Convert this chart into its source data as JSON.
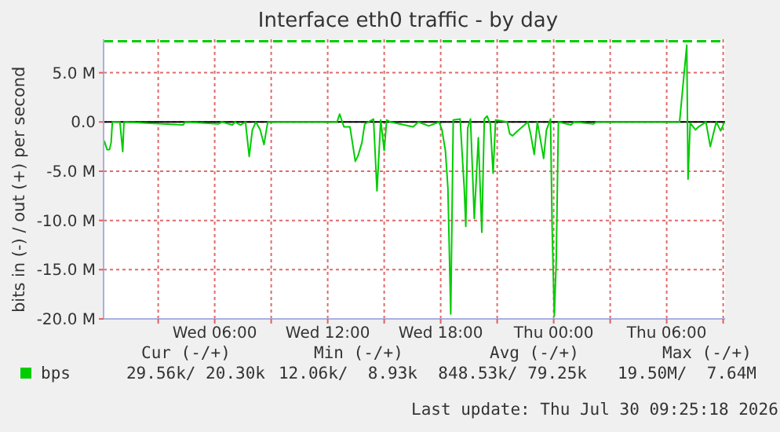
{
  "chart_data": {
    "type": "line",
    "title": "Interface eth0 traffic - by day",
    "ylabel": "bits in (-) / out (+) per second",
    "x": [
      "2026-07-29T00:08",
      "2026-07-29T00:17",
      "2026-07-29T00:25",
      "2026-07-29T00:30",
      "2026-07-29T00:34",
      "2026-07-29T00:58",
      "2026-07-29T01:07",
      "2026-07-29T01:11",
      "2026-07-29T04:19",
      "2026-07-29T04:26",
      "2026-07-29T06:11",
      "2026-07-29T06:23",
      "2026-07-29T06:56",
      "2026-07-29T07:05",
      "2026-07-29T07:22",
      "2026-07-29T07:38",
      "2026-07-29T07:50",
      "2026-07-29T08:00",
      "2026-07-29T08:11",
      "2026-07-29T08:25",
      "2026-07-29T08:37",
      "2026-07-29T08:49",
      "2026-07-29T12:30",
      "2026-07-29T12:38",
      "2026-07-29T12:52",
      "2026-07-29T13:11",
      "2026-07-29T13:28",
      "2026-07-29T13:37",
      "2026-07-29T13:49",
      "2026-07-29T13:58",
      "2026-07-29T14:26",
      "2026-07-29T14:37",
      "2026-07-29T14:49",
      "2026-07-29T15:00",
      "2026-07-29T15:08",
      "2026-07-29T15:20",
      "2026-07-29T16:32",
      "2026-07-29T16:49",
      "2026-07-29T17:22",
      "2026-07-29T17:55",
      "2026-07-29T18:04",
      "2026-07-29T18:15",
      "2026-07-29T18:23",
      "2026-07-29T18:32",
      "2026-07-29T18:40",
      "2026-07-29T19:02",
      "2026-07-29T19:10",
      "2026-07-29T19:15",
      "2026-07-29T19:20",
      "2026-07-29T19:26",
      "2026-07-29T19:35",
      "2026-07-29T19:47",
      "2026-07-29T20:00",
      "2026-07-29T20:11",
      "2026-07-29T20:19",
      "2026-07-29T20:28",
      "2026-07-29T20:38",
      "2026-07-29T20:47",
      "2026-07-29T20:55",
      "2026-07-29T21:32",
      "2026-07-29T21:40",
      "2026-07-29T21:49",
      "2026-07-29T22:02",
      "2026-07-29T22:38",
      "2026-07-29T22:47",
      "2026-07-29T22:58",
      "2026-07-29T23:08",
      "2026-07-29T23:28",
      "2026-07-29T23:37",
      "2026-07-29T23:50",
      "2026-07-29T23:55",
      "2026-07-30T00:02",
      "2026-07-30T00:08",
      "2026-07-30T00:15",
      "2026-07-30T00:55",
      "2026-07-30T01:05",
      "2026-07-30T02:07",
      "2026-07-30T02:15",
      "2026-07-30T06:41",
      "2026-07-30T07:04",
      "2026-07-30T07:08",
      "2026-07-30T07:15",
      "2026-07-30T07:32",
      "2026-07-30T07:41",
      "2026-07-30T08:05",
      "2026-07-30T08:19",
      "2026-07-30T08:28",
      "2026-07-30T08:38",
      "2026-07-30T08:52",
      "2026-07-30T09:04"
    ],
    "series": [
      {
        "name": "bps",
        "color": "#00cc00",
        "values": [
          -1.9,
          -2.8,
          -2.8,
          -2.1,
          0,
          0,
          -3.0,
          0,
          -0.3,
          0,
          -0.2,
          0,
          -0.3,
          0,
          -0.3,
          0,
          -3.5,
          -0.8,
          0,
          -0.8,
          -2.3,
          0,
          0,
          0.8,
          -0.5,
          -0.5,
          -4.0,
          -3.4,
          -2.1,
          -0.2,
          0.3,
          -7.0,
          0.2,
          -2.9,
          0.2,
          0,
          -0.5,
          0,
          -0.4,
          0,
          -0.8,
          -2.9,
          -6.7,
          -19.5,
          0.2,
          0.3,
          -4.1,
          -6.7,
          -10.6,
          -0.6,
          0.3,
          -9.8,
          -1.6,
          -11.2,
          0.3,
          0.6,
          -0.2,
          -5.2,
          0.2,
          0,
          -1.2,
          -1.4,
          -1.0,
          0,
          -1.3,
          -3.3,
          0,
          -3.7,
          -0.8,
          0.3,
          -10.7,
          -19.7,
          -14.2,
          0,
          -0.3,
          0,
          -0.2,
          0,
          0,
          7.8,
          -5.8,
          -0.1,
          -0.8,
          -0.5,
          0,
          -2.5,
          -1.3,
          0,
          -0.9,
          0
        ]
      }
    ],
    "xlim": [
      "2026-07-29T00:06",
      "2026-07-30T09:06"
    ],
    "xticks": [
      {
        "value": "2026-07-29T03:00",
        "label": null
      },
      {
        "value": "2026-07-29T06:00",
        "label": "Wed 06:00"
      },
      {
        "value": "2026-07-29T09:00",
        "label": null
      },
      {
        "value": "2026-07-29T12:00",
        "label": "Wed 12:00"
      },
      {
        "value": "2026-07-29T15:00",
        "label": null
      },
      {
        "value": "2026-07-29T18:00",
        "label": "Wed 18:00"
      },
      {
        "value": "2026-07-29T21:00",
        "label": null
      },
      {
        "value": "2026-07-30T00:00",
        "label": "Thu 00:00"
      },
      {
        "value": "2026-07-30T03:00",
        "label": null
      },
      {
        "value": "2026-07-30T06:00",
        "label": "Thu 06:00"
      },
      {
        "value": "2026-07-30T09:00",
        "label": null
      }
    ],
    "ylim": [
      -20,
      8.4
    ],
    "yticks": [
      {
        "value": -20,
        "label": "-20.0 M"
      },
      {
        "value": -15,
        "label": "-15.0 M"
      },
      {
        "value": -10,
        "label": "-10.0 M"
      },
      {
        "value": -5,
        "label": "-5.0 M"
      },
      {
        "value": 0,
        "label": "0.0"
      },
      {
        "value": 5,
        "label": "5.0 M"
      }
    ],
    "grid": true,
    "legend": "bottom",
    "marker": "none",
    "line_style": "solid",
    "ref_lines": [
      {
        "axis": "y",
        "value": 0,
        "color": "#000000",
        "line_style": "solid"
      },
      {
        "axis": "y",
        "value": 8.2,
        "color": "#00cc00",
        "line_style": "dashed"
      }
    ],
    "annotations": [
      "Cur (-/+)",
      "Min (-/+)",
      "Avg (-/+)",
      "Max (-/+)",
      "29.56k/ 20.30k",
      "12.06k/  8.93k",
      "848.53k/ 79.25k",
      "19.50M/  7.64M",
      "Last update: Thu Jul 30 09:25:18 2026"
    ]
  }
}
